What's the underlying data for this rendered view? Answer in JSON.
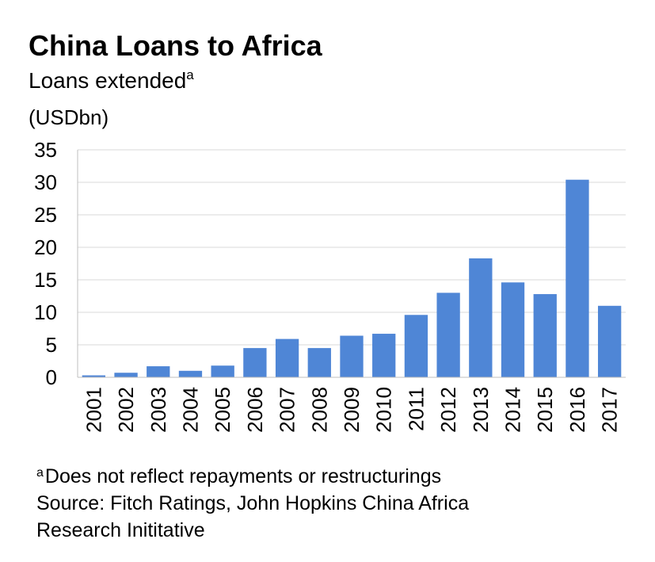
{
  "chart_data": {
    "type": "bar",
    "title": "China Loans to Africa",
    "subtitle": "Loans extended",
    "subtitle_marker": "a",
    "unit": "(USDbn)",
    "categories": [
      "2001",
      "2002",
      "2003",
      "2004",
      "2005",
      "2006",
      "2007",
      "2008",
      "2009",
      "2010",
      "2011",
      "2012",
      "2013",
      "2014",
      "2015",
      "2016",
      "2017"
    ],
    "values": [
      0.3,
      0.7,
      1.7,
      1.0,
      1.8,
      4.5,
      5.9,
      4.5,
      6.4,
      6.7,
      9.6,
      13.0,
      18.3,
      14.6,
      12.8,
      30.4,
      11.0
    ],
    "ylim": [
      0,
      35
    ],
    "yticks": [
      0,
      5,
      10,
      15,
      20,
      25,
      30,
      35
    ],
    "grid": true,
    "legend": "none",
    "bar_color": "#4f86d6"
  },
  "footnote": {
    "marker": "a",
    "text": "Does not reflect repayments or restructurings",
    "source_line1": "Source: Fitch Ratings, John Hopkins China Africa",
    "source_line2": "Research Inititative"
  }
}
